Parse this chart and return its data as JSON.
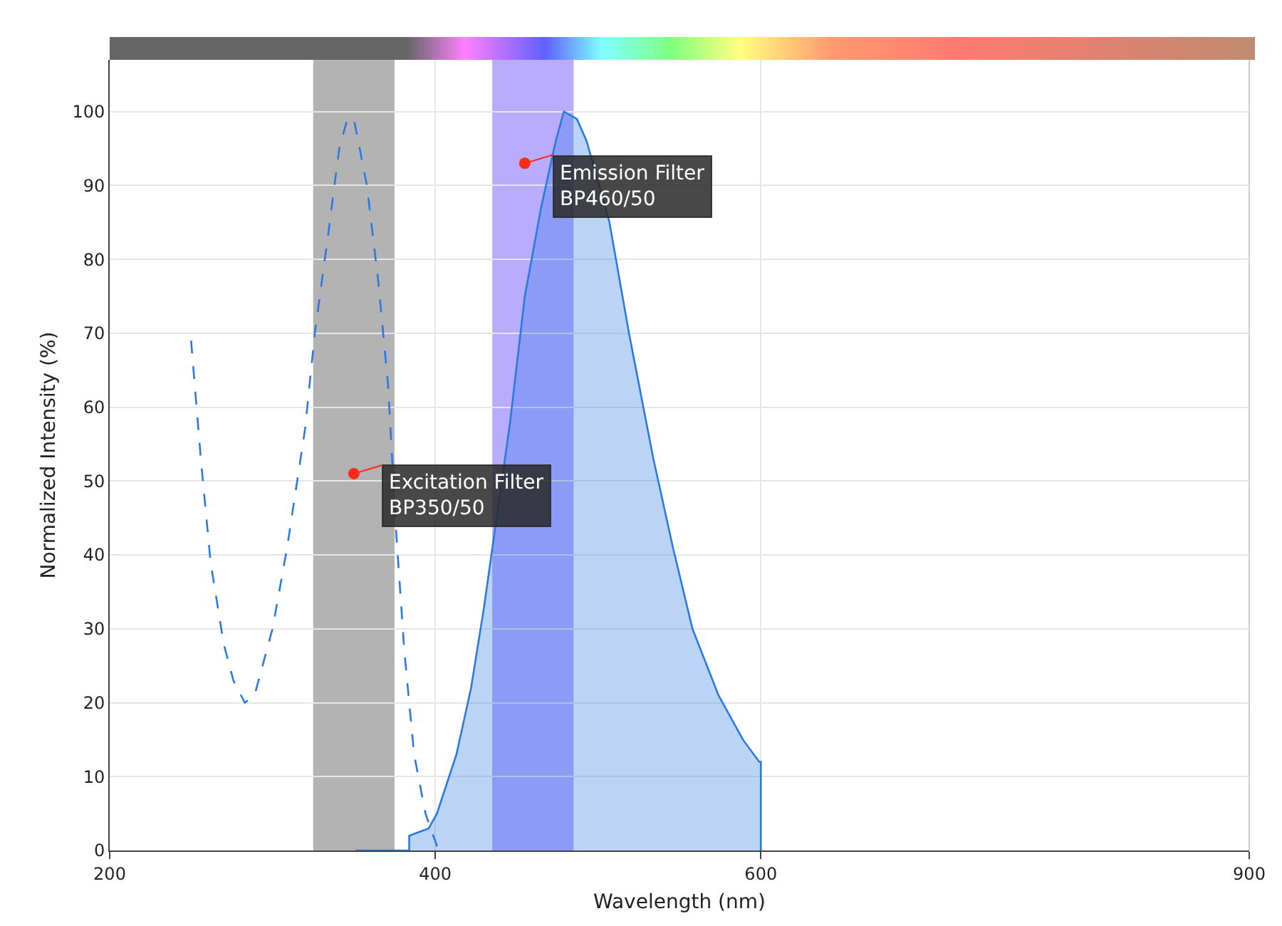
{
  "chart_data": {
    "type": "area",
    "xlabel": "Wavelength (nm)",
    "ylabel": "Normalized Intensity (%)",
    "xlim": [
      200,
      900
    ],
    "xticks": [
      200,
      400,
      600,
      900
    ],
    "ylim": [
      0,
      107
    ],
    "yticks": [
      0,
      10,
      20,
      30,
      40,
      50,
      60,
      70,
      80,
      90,
      100
    ],
    "grid": true,
    "marker": "none",
    "series": [
      {
        "type": "line",
        "line_style": "dashed",
        "color": "#2a7ae2",
        "x": [
          250,
          256,
          262,
          270,
          276,
          283,
          289,
          300,
          309,
          320,
          326,
          334,
          341,
          346,
          350,
          358,
          365,
          371,
          376,
          381,
          387,
          394,
          402
        ],
        "values": [
          69,
          53,
          39,
          28,
          23,
          20,
          21,
          30,
          41,
          57,
          70,
          83,
          95,
          99,
          99,
          90,
          77,
          63,
          43,
          27,
          13,
          5,
          0
        ]
      },
      {
        "line_style": "solid",
        "color": "#2a7ae2",
        "x": [
          351,
          384,
          384,
          396,
          401,
          413,
          422,
          430,
          446,
          455,
          465,
          474,
          479,
          487,
          493,
          507,
          519,
          534,
          546,
          558,
          574,
          589,
          599,
          600,
          600
        ],
        "values": [
          0,
          0,
          2,
          3,
          5,
          13,
          22,
          33,
          58,
          75,
          87,
          96,
          100,
          99,
          96,
          85,
          70,
          53,
          41,
          30,
          21,
          15,
          12,
          12,
          0
        ]
      }
    ],
    "bands": [
      {
        "axis": "x",
        "from": 325,
        "to": 375,
        "color": "#b3b3b3"
      },
      {
        "axis": "x",
        "from": 435,
        "to": 485,
        "color": "#b9acff"
      }
    ],
    "annotations": [
      {
        "text": "Excitation Filter\nBP350/50",
        "x": 350,
        "y": 51
      },
      {
        "text": "Emission Filter\nBP460/50",
        "x": 455,
        "y": 93
      }
    ]
  }
}
